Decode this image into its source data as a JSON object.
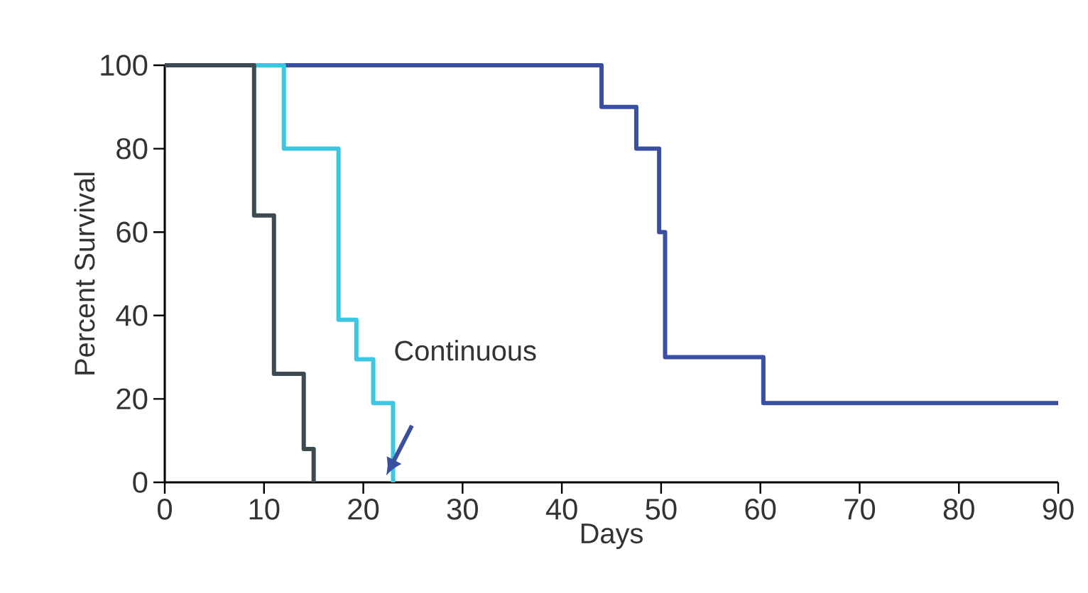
{
  "chart_data": {
    "type": "step",
    "xlabel": "Days",
    "ylabel": "Percent Survival",
    "xlim": [
      0,
      90
    ],
    "xticks": [
      0,
      10,
      20,
      30,
      40,
      50,
      60,
      70,
      80,
      90
    ],
    "ylim": [
      0,
      100
    ],
    "yticks": [
      0,
      20,
      40,
      60,
      80,
      100
    ],
    "grid": false,
    "marker": "none",
    "line_style": "solid",
    "annotations": [
      "Continuous"
    ],
    "series": [
      {
        "color": "#3a4fa0",
        "x": [
          0,
          44,
          47.5,
          49.8,
          50.4,
          60.3,
          90
        ],
        "values": [
          100,
          90,
          80,
          60,
          30,
          19,
          19
        ]
      },
      {
        "color": "#3ec6e0",
        "x": [
          0,
          12,
          17.5,
          19.3,
          21,
          23
        ],
        "values": [
          100,
          80,
          39,
          29.5,
          19,
          0
        ]
      },
      {
        "color": "#3d4a52",
        "x": [
          0,
          9,
          11,
          14,
          15
        ],
        "values": [
          100,
          64,
          26,
          8,
          0
        ]
      }
    ]
  }
}
